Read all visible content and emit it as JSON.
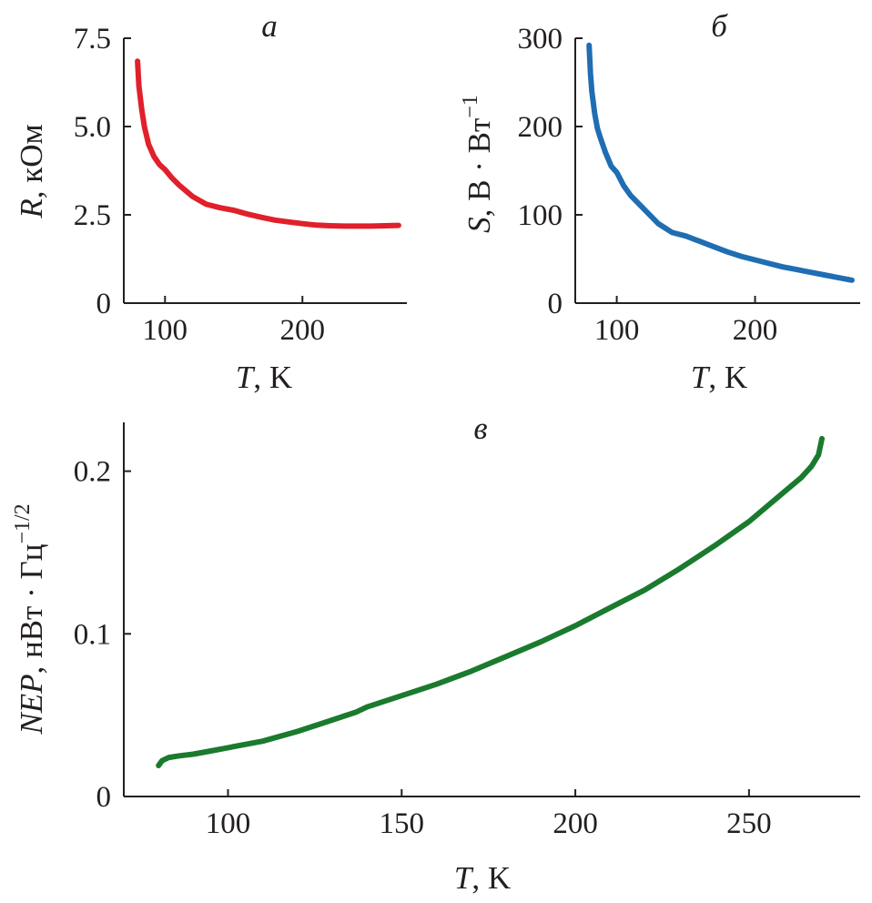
{
  "chart_data": [
    {
      "panel": "а",
      "type": "line",
      "xlabel": {
        "var": "T",
        "unit": ", K"
      },
      "ylabel": {
        "var": "R",
        "unit": ", кОм"
      },
      "xlim": [
        70,
        276
      ],
      "ylim": [
        0,
        7.5
      ],
      "xticks": [
        100,
        200
      ],
      "xtick_labels": [
        "100",
        "200"
      ],
      "yticks": [
        0,
        2.5,
        5.0,
        7.5
      ],
      "ytick_labels": [
        "0",
        "2.5",
        "5.0",
        "7.5"
      ],
      "color": "#e0202a",
      "series": [
        {
          "x": [
            80,
            81,
            83,
            85,
            88,
            92,
            96,
            100,
            105,
            110,
            120,
            130,
            140,
            150,
            160,
            170,
            180,
            190,
            200,
            210,
            220,
            230,
            240,
            250,
            260,
            270
          ],
          "y": [
            6.85,
            6.15,
            5.5,
            5.0,
            4.5,
            4.15,
            3.92,
            3.78,
            3.55,
            3.35,
            3.02,
            2.8,
            2.7,
            2.63,
            2.52,
            2.43,
            2.35,
            2.3,
            2.25,
            2.21,
            2.19,
            2.18,
            2.18,
            2.18,
            2.19,
            2.2
          ]
        }
      ]
    },
    {
      "panel": "б",
      "type": "line",
      "xlabel": {
        "var": "T",
        "unit": ", K"
      },
      "ylabel": {
        "var": "S",
        "unit": ", В · Вт",
        "sup": "−1"
      },
      "xlim": [
        70,
        276
      ],
      "ylim": [
        0,
        300
      ],
      "xticks": [
        100,
        200
      ],
      "xtick_labels": [
        "100",
        "200"
      ],
      "yticks": [
        0,
        100,
        200,
        300
      ],
      "ytick_labels": [
        "0",
        "100",
        "200",
        "300"
      ],
      "color": "#1f6db3",
      "series": [
        {
          "x": [
            80,
            81,
            82,
            84,
            86,
            88,
            92,
            96,
            100,
            105,
            110,
            120,
            130,
            140,
            150,
            160,
            170,
            180,
            190,
            200,
            210,
            220,
            230,
            240,
            250,
            260,
            270
          ],
          "y": [
            292,
            260,
            240,
            215,
            198,
            188,
            170,
            155,
            148,
            133,
            122,
            106,
            90,
            80,
            76,
            70,
            64,
            58,
            53,
            49,
            45,
            41,
            38,
            35,
            32,
            29,
            26
          ]
        }
      ]
    },
    {
      "panel": "в",
      "type": "line",
      "xlabel": {
        "var": "T",
        "unit": ", K"
      },
      "ylabel": {
        "var": "NEP",
        "unit": ", нВт · Гц",
        "sup": "−1/2"
      },
      "xlim": [
        70,
        282
      ],
      "ylim": [
        0,
        0.23
      ],
      "xticks": [
        100,
        150,
        200,
        250
      ],
      "xtick_labels": [
        "100",
        "150",
        "200",
        "250"
      ],
      "yticks": [
        0,
        0.1,
        0.2
      ],
      "ytick_labels": [
        "0",
        "0.1",
        "0.2"
      ],
      "color": "#1a7a2e",
      "series": [
        {
          "x": [
            80,
            81,
            83,
            86,
            90,
            95,
            100,
            110,
            120,
            130,
            137,
            140,
            150,
            160,
            170,
            180,
            190,
            200,
            210,
            220,
            230,
            240,
            250,
            260,
            265,
            268,
            270,
            271
          ],
          "y": [
            0.019,
            0.022,
            0.024,
            0.025,
            0.026,
            0.028,
            0.03,
            0.034,
            0.04,
            0.047,
            0.052,
            0.055,
            0.062,
            0.069,
            0.077,
            0.086,
            0.095,
            0.105,
            0.116,
            0.127,
            0.14,
            0.154,
            0.169,
            0.187,
            0.196,
            0.203,
            0.21,
            0.22
          ]
        }
      ]
    }
  ]
}
